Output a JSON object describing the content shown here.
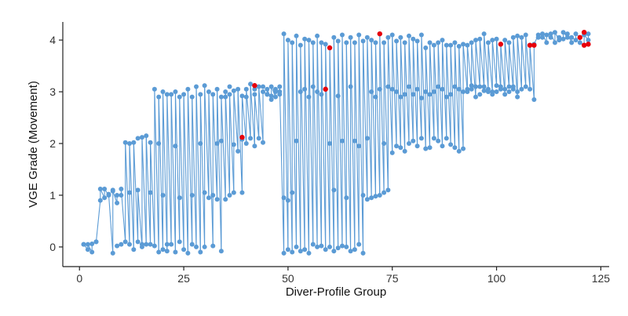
{
  "chart_data": {
    "type": "scatter",
    "title": "",
    "xlabel": "Diver-Profile Group",
    "ylabel": "VGE Grade (Movement)",
    "xlim": [
      -4,
      127
    ],
    "ylim": [
      -0.38,
      4.35
    ],
    "x_ticks": [
      0,
      25,
      50,
      75,
      100,
      125
    ],
    "y_ticks": [
      0,
      1,
      2,
      3,
      4
    ],
    "grid": false,
    "legend": "none",
    "colors": {
      "point": "#5b9bd5",
      "segment": "#5b9bd5",
      "highlight": "#e8000b",
      "axis": "#222222"
    },
    "series": [
      {
        "segments_by_group": [
          [
            1,
            0.05,
            0.05
          ],
          [
            2,
            -0.05,
            0.05
          ],
          [
            3,
            -0.1,
            0.06
          ],
          [
            4,
            0.1,
            0.1
          ],
          [
            5,
            0.9,
            1.12
          ],
          [
            6,
            0.95,
            1.12
          ],
          [
            7,
            1.0,
            1.02
          ],
          [
            8,
            -0.12,
            1.08
          ],
          [
            9,
            0.85,
            1.0
          ],
          [
            10,
            1.0,
            1.12
          ],
          [
            11,
            0.1,
            2.02
          ],
          [
            12,
            0.05,
            2.0
          ],
          [
            13,
            -0.05,
            2.02
          ],
          [
            14,
            0.1,
            1.1
          ],
          [
            15,
            0.0,
            2.12
          ],
          [
            16,
            0.05,
            2.15
          ],
          [
            17,
            0.05,
            2.02
          ],
          [
            18,
            0.02,
            3.05
          ],
          [
            19,
            -0.1,
            2.9
          ],
          [
            20,
            -0.05,
            3.0
          ],
          [
            21,
            -0.08,
            2.95
          ],
          [
            22,
            0.05,
            2.95
          ],
          [
            23,
            -0.1,
            3.0
          ],
          [
            24,
            0.1,
            2.9
          ],
          [
            25,
            -0.05,
            2.95
          ],
          [
            26,
            -0.12,
            3.05
          ],
          [
            27,
            0.05,
            2.9
          ],
          [
            28,
            0.0,
            3.1
          ],
          [
            29,
            -0.1,
            2.95
          ],
          [
            30,
            0.0,
            3.12
          ],
          [
            31,
            0.95,
            3.0
          ],
          [
            32,
            0.02,
            2.95
          ],
          [
            33,
            0.92,
            3.05
          ],
          [
            34,
            -0.08,
            2.9
          ],
          [
            35,
            0.92,
            3.0
          ],
          [
            36,
            1.0,
            2.95
          ],
          [
            37,
            1.05,
            3.02
          ],
          [
            38,
            1.85,
            3.05
          ],
          [
            39,
            1.05,
            2.92
          ],
          [
            40,
            2.0,
            3.05
          ],
          [
            41,
            2.1,
            3.15
          ],
          [
            42,
            1.95,
            2.95
          ],
          [
            43,
            2.1,
            3.1
          ],
          [
            44,
            2.02,
            3.0
          ],
          [
            45,
            2.95,
            3.05
          ],
          [
            46,
            2.85,
            3.1
          ],
          [
            47,
            2.9,
            3.05
          ],
          [
            48,
            3.0,
            3.1
          ],
          [
            49,
            -0.12,
            4.12
          ],
          [
            50,
            -0.05,
            4.0
          ],
          [
            51,
            -0.1,
            3.95
          ],
          [
            52,
            0.0,
            4.08
          ],
          [
            53,
            -0.08,
            3.9
          ],
          [
            54,
            -0.05,
            4.02
          ],
          [
            55,
            -0.12,
            4.0
          ],
          [
            56,
            0.05,
            3.95
          ],
          [
            57,
            0.0,
            4.08
          ],
          [
            58,
            0.02,
            3.95
          ],
          [
            59,
            -0.05,
            3.92
          ],
          [
            60,
            0.0,
            3.85
          ],
          [
            61,
            -0.08,
            4.05
          ],
          [
            62,
            -0.02,
            3.98
          ],
          [
            63,
            0.02,
            4.1
          ],
          [
            64,
            0.0,
            3.95
          ],
          [
            65,
            -0.08,
            4.05
          ],
          [
            66,
            -0.05,
            3.95
          ],
          [
            67,
            0.05,
            4.1
          ],
          [
            68,
            -0.12,
            3.98
          ],
          [
            69,
            0.92,
            4.05
          ],
          [
            70,
            0.95,
            4.0
          ],
          [
            71,
            0.98,
            3.95
          ],
          [
            72,
            1.0,
            4.12
          ],
          [
            73,
            1.05,
            3.95
          ],
          [
            74,
            1.1,
            4.05
          ],
          [
            75,
            1.82,
            4.1
          ],
          [
            76,
            1.95,
            3.98
          ],
          [
            77,
            1.92,
            4.05
          ],
          [
            78,
            1.85,
            3.95
          ],
          [
            79,
            2.0,
            4.08
          ],
          [
            80,
            2.05,
            4.02
          ],
          [
            81,
            1.95,
            3.98
          ],
          [
            82,
            2.1,
            4.1
          ],
          [
            83,
            1.9,
            3.85
          ],
          [
            84,
            1.92,
            3.95
          ],
          [
            85,
            2.1,
            3.9
          ],
          [
            86,
            2.05,
            3.95
          ],
          [
            87,
            1.95,
            4.0
          ],
          [
            88,
            2.1,
            3.9
          ],
          [
            89,
            1.98,
            3.9
          ],
          [
            90,
            1.92,
            3.95
          ],
          [
            91,
            1.85,
            3.88
          ],
          [
            92,
            1.9,
            3.92
          ],
          [
            93,
            3.0,
            3.9
          ],
          [
            94,
            3.05,
            3.95
          ],
          [
            95,
            2.9,
            4.0
          ],
          [
            96,
            3.1,
            4.02
          ],
          [
            97,
            3.1,
            4.12
          ],
          [
            98,
            3.05,
            3.95
          ],
          [
            99,
            3.0,
            4.0
          ],
          [
            100,
            3.12,
            4.02
          ],
          [
            101,
            3.05,
            3.92
          ],
          [
            102,
            2.95,
            4.0
          ],
          [
            103,
            3.1,
            3.95
          ],
          [
            104,
            3.05,
            4.05
          ],
          [
            105,
            2.9,
            4.08
          ],
          [
            106,
            3.05,
            4.05
          ],
          [
            107,
            3.1,
            4.1
          ],
          [
            108,
            3.05,
            3.9
          ],
          [
            109,
            2.85,
            3.92
          ],
          [
            110,
            4.1,
            4.05
          ],
          [
            111,
            4.05,
            4.12
          ],
          [
            112,
            3.95,
            4.1
          ],
          [
            113,
            4.05,
            4.12
          ],
          [
            114,
            3.95,
            4.15
          ],
          [
            115,
            4.0,
            4.05
          ],
          [
            116,
            4.02,
            4.15
          ],
          [
            117,
            4.05,
            4.12
          ],
          [
            118,
            3.95,
            4.05
          ],
          [
            119,
            4.0,
            4.12
          ],
          [
            120,
            4.05,
            3.95
          ],
          [
            121,
            3.9,
            4.1
          ],
          [
            122,
            4.0,
            4.12
          ]
        ],
        "extra_points": [
          [
            8,
            1.1
          ],
          [
            9,
            0.02
          ],
          [
            10,
            0.05
          ],
          [
            12,
            1.05
          ],
          [
            14,
            2.1
          ],
          [
            15,
            0.05
          ],
          [
            17,
            1.05
          ],
          [
            19,
            2.0
          ],
          [
            20,
            1.0
          ],
          [
            21,
            0.05
          ],
          [
            23,
            1.95
          ],
          [
            24,
            0.95
          ],
          [
            27,
            1.0
          ],
          [
            29,
            2.0
          ],
          [
            30,
            1.05
          ],
          [
            32,
            1.0
          ],
          [
            33,
            2.0
          ],
          [
            34,
            2.05
          ],
          [
            35,
            2.9
          ],
          [
            36,
            3.1
          ],
          [
            37,
            1.98
          ],
          [
            39,
            2.08
          ],
          [
            40,
            2.9
          ],
          [
            42,
            3.05
          ],
          [
            44,
            3.1
          ],
          [
            45,
            2.95
          ],
          [
            46,
            2.92
          ],
          [
            47,
            3.0
          ],
          [
            48,
            2.95
          ],
          [
            49,
            0.95
          ],
          [
            50,
            0.9
          ],
          [
            51,
            1.05
          ],
          [
            52,
            2.05
          ],
          [
            53,
            3.0
          ],
          [
            54,
            3.05
          ],
          [
            55,
            2.9
          ],
          [
            56,
            3.1
          ],
          [
            57,
            3.0
          ],
          [
            58,
            2.95
          ],
          [
            59,
            3.05
          ],
          [
            60,
            2.0
          ],
          [
            61,
            1.1
          ],
          [
            62,
            2.92
          ],
          [
            63,
            2.05
          ],
          [
            64,
            0.95
          ],
          [
            65,
            3.1
          ],
          [
            66,
            2.05
          ],
          [
            67,
            1.95
          ],
          [
            68,
            1.0
          ],
          [
            69,
            2.1
          ],
          [
            70,
            3.0
          ],
          [
            71,
            2.9
          ],
          [
            72,
            3.05
          ],
          [
            73,
            2.0
          ],
          [
            74,
            3.1
          ],
          [
            75,
            3.05
          ],
          [
            76,
            3.0
          ],
          [
            77,
            2.9
          ],
          [
            78,
            2.95
          ],
          [
            79,
            3.1
          ],
          [
            80,
            2.95
          ],
          [
            81,
            3.05
          ],
          [
            82,
            2.88
          ],
          [
            83,
            3.0
          ],
          [
            84,
            2.95
          ],
          [
            85,
            3.0
          ],
          [
            86,
            3.1
          ],
          [
            87,
            3.05
          ],
          [
            88,
            2.9
          ],
          [
            89,
            2.95
          ],
          [
            90,
            3.1
          ],
          [
            91,
            3.05
          ],
          [
            92,
            3.0
          ],
          [
            93,
            3.05
          ],
          [
            94,
            3.12
          ],
          [
            95,
            3.1
          ],
          [
            96,
            2.95
          ],
          [
            97,
            3.02
          ],
          [
            98,
            3.0
          ],
          [
            99,
            2.95
          ],
          [
            100,
            3.0
          ],
          [
            101,
            3.1
          ],
          [
            102,
            3.05
          ],
          [
            103,
            3.0
          ],
          [
            104,
            3.1
          ],
          [
            105,
            3.0
          ]
        ]
      }
    ],
    "highlighted_points": [
      [
        39,
        2.12
      ],
      [
        42,
        3.12
      ],
      [
        59,
        3.05
      ],
      [
        60,
        3.85
      ],
      [
        72,
        4.12
      ],
      [
        101,
        3.92
      ],
      [
        108,
        3.9
      ],
      [
        109,
        3.9
      ],
      [
        120,
        4.05
      ],
      [
        121,
        4.15
      ],
      [
        121,
        3.9
      ],
      [
        122,
        3.92
      ]
    ]
  }
}
